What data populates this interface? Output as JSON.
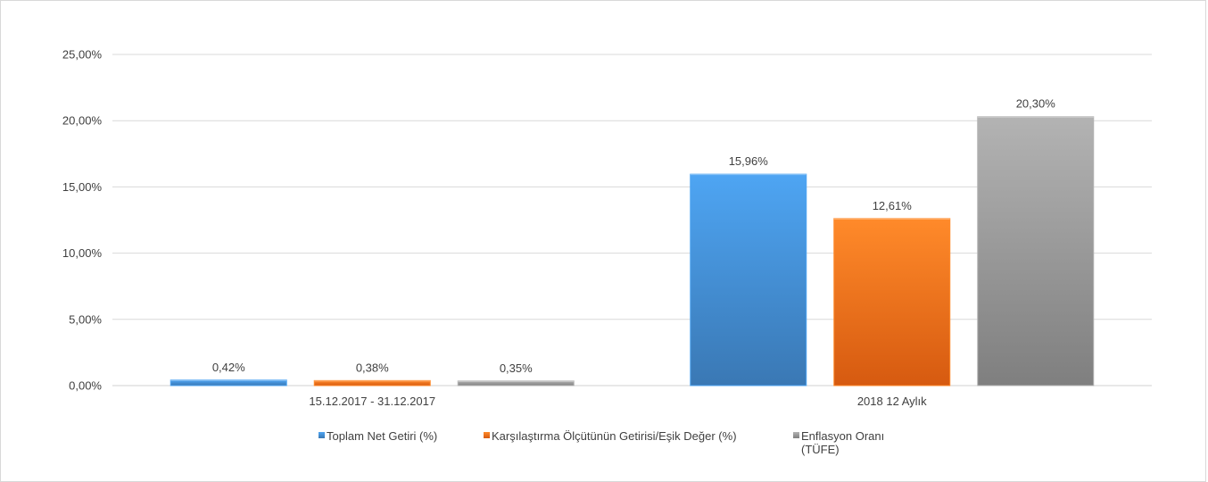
{
  "chart_data": {
    "type": "bar",
    "title": "",
    "xlabel": "",
    "ylabel": "",
    "ylim": [
      0,
      25
    ],
    "yticks": [
      0,
      5,
      10,
      15,
      20,
      25
    ],
    "ytick_labels": [
      "0,00%",
      "5,00%",
      "10,00%",
      "15,00%",
      "20,00%",
      "25,00%"
    ],
    "categories": [
      "15.12.2017 - 31.12.2017",
      "2018 12 Aylık"
    ],
    "grid": true,
    "legend_position": "bottom",
    "series": [
      {
        "name": "Toplam Net Getiri (%)",
        "values": [
          0.42,
          15.96
        ],
        "labels": [
          "0,42%",
          "15,96%"
        ],
        "color_top": "#4ea5f3",
        "color_bottom": "#3a78b4",
        "legend_lines": [
          "Toplam Net Getiri (%)"
        ]
      },
      {
        "name": "Karşılaştırma Ölçütünün Getirisi/Eşik Değer (%)",
        "values": [
          0.38,
          12.61
        ],
        "labels": [
          "0,38%",
          "12,61%"
        ],
        "color_top": "#ff8a2a",
        "color_bottom": "#d65a10",
        "legend_lines": [
          "Karşılaştırma Ölçütünün Getirisi/Eşik Değer (%)"
        ]
      },
      {
        "name": "Enflasyon Oranı (TÜFE)",
        "values": [
          0.35,
          20.3
        ],
        "labels": [
          "0,35%",
          "20,30%"
        ],
        "color_top": "#b3b3b3",
        "color_bottom": "#7f7f7f",
        "legend_lines": [
          "Enflasyon Oranı",
          "(TÜFE)"
        ]
      }
    ]
  }
}
